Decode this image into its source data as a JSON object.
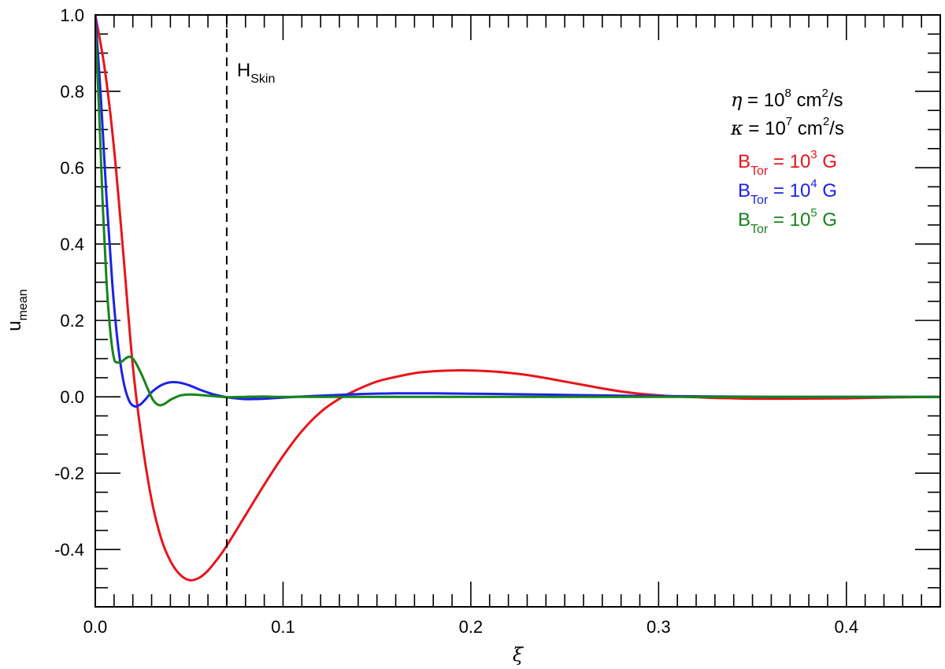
{
  "chart_data": {
    "type": "line",
    "title": "",
    "xlabel": "ξ",
    "ylabel": {
      "main": "u",
      "sub": "mean"
    },
    "xlim": [
      0,
      0.45
    ],
    "ylim": [
      -0.55,
      1.0
    ],
    "xticks": [
      0.0,
      0.1,
      0.2,
      0.3,
      0.4
    ],
    "xtick_labels": [
      "0.0",
      "0.1",
      "0.2",
      "0.3",
      "0.4"
    ],
    "yticks": [
      -0.4,
      -0.2,
      0.0,
      0.2,
      0.4,
      0.6,
      0.8,
      1.0
    ],
    "ytick_labels": [
      "-0.4",
      "-0.2",
      "0.0",
      "0.2",
      "0.4",
      "0.6",
      "0.8",
      "1.0"
    ],
    "grid": false,
    "vline": {
      "x": 0.07,
      "style": "dashed",
      "label": {
        "main": "H",
        "sub": "Skin"
      }
    },
    "annotations": [
      {
        "symbol": "η",
        "text_a": " = 10",
        "sup_a": "8",
        "text_b": " cm",
        "sup_b": "2",
        "text_c": "/s"
      },
      {
        "symbol": "κ",
        "text_a": " = 10",
        "sup_a": "7",
        "text_b": " cm",
        "sup_b": "2",
        "text_c": "/s"
      }
    ],
    "legend_position": "top-right",
    "series": [
      {
        "name": {
          "main": "B",
          "sub": "Tor",
          "text": " = 10",
          "sup": "3",
          "unit": " G"
        },
        "color": "#e8141b",
        "points": [
          [
            0,
            1.0
          ],
          [
            0.005,
            0.86
          ],
          [
            0.01,
            0.65
          ],
          [
            0.015,
            0.37
          ],
          [
            0.02,
            0.08
          ],
          [
            0.025,
            -0.12
          ],
          [
            0.03,
            -0.27
          ],
          [
            0.035,
            -0.37
          ],
          [
            0.04,
            -0.43
          ],
          [
            0.045,
            -0.465
          ],
          [
            0.05,
            -0.48
          ],
          [
            0.055,
            -0.475
          ],
          [
            0.06,
            -0.455
          ],
          [
            0.065,
            -0.425
          ],
          [
            0.07,
            -0.39
          ],
          [
            0.08,
            -0.31
          ],
          [
            0.09,
            -0.23
          ],
          [
            0.1,
            -0.155
          ],
          [
            0.11,
            -0.09
          ],
          [
            0.12,
            -0.04
          ],
          [
            0.13,
            -0.005
          ],
          [
            0.14,
            0.02
          ],
          [
            0.15,
            0.04
          ],
          [
            0.16,
            0.052
          ],
          [
            0.17,
            0.062
          ],
          [
            0.18,
            0.067
          ],
          [
            0.19,
            0.069
          ],
          [
            0.2,
            0.069
          ],
          [
            0.21,
            0.067
          ],
          [
            0.22,
            0.063
          ],
          [
            0.23,
            0.057
          ],
          [
            0.24,
            0.049
          ],
          [
            0.25,
            0.04
          ],
          [
            0.26,
            0.031
          ],
          [
            0.27,
            0.022
          ],
          [
            0.28,
            0.014
          ],
          [
            0.29,
            0.008
          ],
          [
            0.3,
            0.004
          ],
          [
            0.31,
            0.001
          ],
          [
            0.32,
            -0.001
          ],
          [
            0.33,
            -0.003
          ],
          [
            0.34,
            -0.004
          ],
          [
            0.35,
            -0.005
          ],
          [
            0.37,
            -0.005
          ],
          [
            0.4,
            -0.004
          ],
          [
            0.42,
            -0.002
          ],
          [
            0.45,
            0.0
          ]
        ]
      },
      {
        "name": {
          "main": "B",
          "sub": "Tor",
          "text": " = 10",
          "sup": "4",
          "unit": " G"
        },
        "color": "#1c22e6",
        "points": [
          [
            0,
            1.0
          ],
          [
            0.003,
            0.78
          ],
          [
            0.006,
            0.52
          ],
          [
            0.009,
            0.3
          ],
          [
            0.012,
            0.14
          ],
          [
            0.015,
            0.04
          ],
          [
            0.018,
            -0.01
          ],
          [
            0.021,
            -0.025
          ],
          [
            0.024,
            -0.02
          ],
          [
            0.027,
            -0.005
          ],
          [
            0.03,
            0.012
          ],
          [
            0.035,
            0.03
          ],
          [
            0.04,
            0.038
          ],
          [
            0.045,
            0.037
          ],
          [
            0.05,
            0.03
          ],
          [
            0.055,
            0.02
          ],
          [
            0.06,
            0.011
          ],
          [
            0.065,
            0.004
          ],
          [
            0.07,
            -0.001
          ],
          [
            0.075,
            -0.004
          ],
          [
            0.08,
            -0.006
          ],
          [
            0.09,
            -0.005
          ],
          [
            0.1,
            -0.002
          ],
          [
            0.12,
            0.003
          ],
          [
            0.14,
            0.007
          ],
          [
            0.16,
            0.009
          ],
          [
            0.18,
            0.009
          ],
          [
            0.2,
            0.008
          ],
          [
            0.22,
            0.007
          ],
          [
            0.25,
            0.005
          ],
          [
            0.28,
            0.003
          ],
          [
            0.3,
            0.002
          ],
          [
            0.33,
            0.001
          ],
          [
            0.36,
            0.0
          ],
          [
            0.4,
            0.0
          ],
          [
            0.45,
            0.0
          ]
        ]
      },
      {
        "name": {
          "main": "B",
          "sub": "Tor",
          "text": " = 10",
          "sup": "5",
          "unit": " G"
        },
        "color": "#17841b",
        "points": [
          [
            0,
            0.97
          ],
          [
            0.002,
            0.75
          ],
          [
            0.004,
            0.5
          ],
          [
            0.006,
            0.3
          ],
          [
            0.008,
            0.17
          ],
          [
            0.01,
            0.1
          ],
          [
            0.012,
            0.09
          ],
          [
            0.014,
            0.092
          ],
          [
            0.016,
            0.1
          ],
          [
            0.018,
            0.105
          ],
          [
            0.02,
            0.1
          ],
          [
            0.022,
            0.085
          ],
          [
            0.025,
            0.055
          ],
          [
            0.028,
            0.02
          ],
          [
            0.031,
            -0.01
          ],
          [
            0.034,
            -0.022
          ],
          [
            0.037,
            -0.018
          ],
          [
            0.04,
            -0.008
          ],
          [
            0.045,
            0.003
          ],
          [
            0.05,
            0.006
          ],
          [
            0.055,
            0.005
          ],
          [
            0.06,
            0.003
          ],
          [
            0.065,
            0.001
          ],
          [
            0.07,
            -0.001
          ],
          [
            0.08,
            0.0
          ],
          [
            0.09,
            0.001
          ],
          [
            0.1,
            0.0
          ],
          [
            0.15,
            0.0
          ],
          [
            0.2,
            0.0
          ],
          [
            0.3,
            0.0
          ],
          [
            0.45,
            0.0
          ]
        ]
      }
    ]
  }
}
